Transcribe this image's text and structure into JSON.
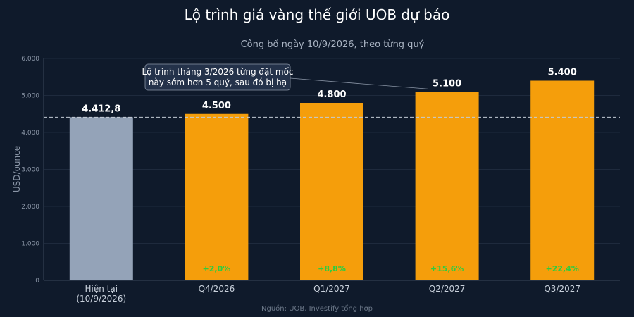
{
  "chart_data": {
    "type": "bar",
    "title": "Lộ trình giá vàng thế giới UOB dự báo",
    "subtitle": "Công bố ngày 10/9/2026, theo từng quý",
    "ylabel": "USD/ounce",
    "xlabel": "",
    "ylim": [
      0,
      6000
    ],
    "yticks": [
      "0",
      "1.000",
      "2.000",
      "3.000",
      "4.000",
      "5.000",
      "6.000"
    ],
    "grid": true,
    "categories": [
      {
        "line1": "Hiện tại",
        "line2": "(10/9/2026)"
      },
      {
        "line1": "Q4/2026",
        "line2": ""
      },
      {
        "line1": "Q1/2027",
        "line2": ""
      },
      {
        "line1": "Q2/2027",
        "line2": ""
      },
      {
        "line1": "Q3/2027",
        "line2": ""
      }
    ],
    "values": [
      4412.8,
      4500,
      4800,
      5100,
      5400
    ],
    "value_labels": [
      "4.412,8",
      "4.500",
      "4.800",
      "5.100",
      "5.400"
    ],
    "change_labels": [
      "",
      "+2,0%",
      "+8,8%",
      "+15,6%",
      "+22,4%"
    ],
    "bar_colors": [
      "#94a3b8",
      "#f59e0b",
      "#f59e0b",
      "#f59e0b",
      "#f59e0b"
    ],
    "reference_line": 4412.8,
    "annotation": {
      "line1": "Lộ trình tháng 3/2026 từng đặt mốc",
      "line2": "này sớm hơn 5 quý, sau đó bị hạ",
      "target_index": 3
    },
    "source": "Nguồn: UOB, Investify tổng hợp"
  },
  "colors": {
    "background": "#0f1a2b",
    "grid": "#1e2a3d",
    "axis": "#3a4659",
    "change_text": "#2ecc40"
  }
}
